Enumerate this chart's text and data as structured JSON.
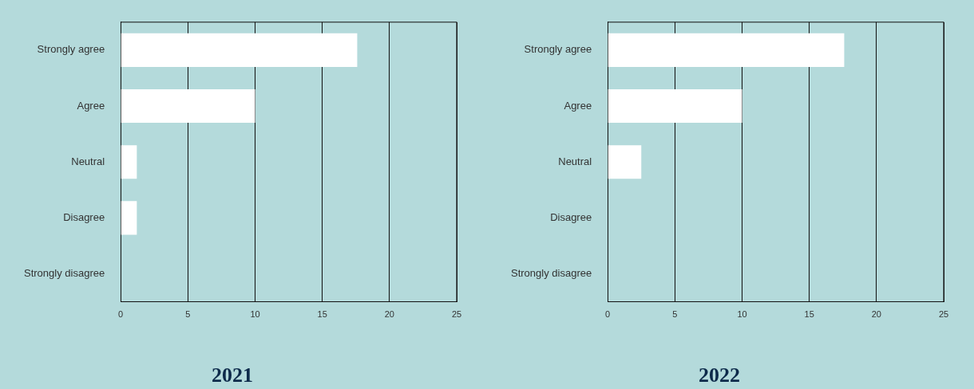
{
  "chart_data": [
    {
      "type": "bar",
      "orientation": "horizontal",
      "title": "2021",
      "categories": [
        "Strongly agree",
        "Agree",
        "Neutral",
        "Disagree",
        "Strongly disagree"
      ],
      "values": [
        17.6,
        10,
        1.2,
        1.2,
        0
      ],
      "color": "#ffffff",
      "xlim": [
        0,
        25
      ],
      "xticks": [
        0,
        5,
        10,
        15,
        20,
        25
      ],
      "grid": "x"
    },
    {
      "type": "bar",
      "orientation": "horizontal",
      "title": "2022",
      "categories": [
        "Strongly agree",
        "Agree",
        "Neutral",
        "Disagree",
        "Strongly disagree"
      ],
      "values": [
        17.6,
        10,
        2.5,
        0,
        0
      ],
      "color": "#ffffff",
      "xlim": [
        0,
        25
      ],
      "xticks": [
        0,
        5,
        10,
        15,
        20,
        25
      ],
      "grid": "x"
    }
  ]
}
